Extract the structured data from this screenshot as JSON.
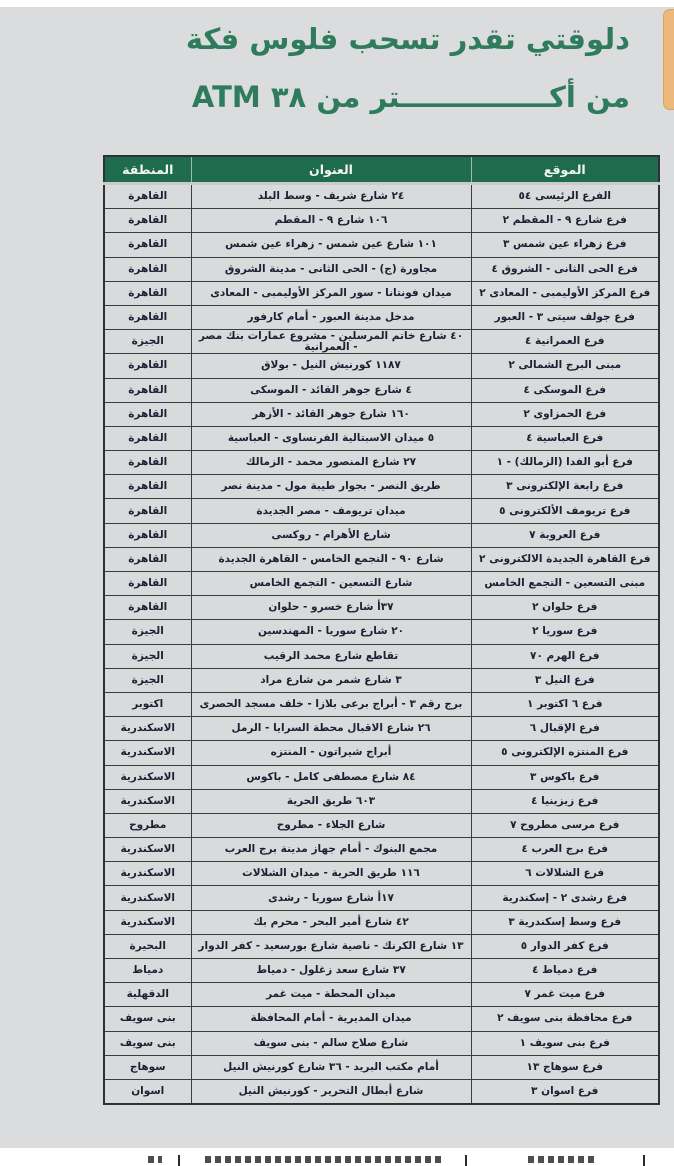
{
  "header": {
    "title_line1": "دلوقتي تقدر تسحب فلوس فكة",
    "title_line2": "من أكـــــــــــــــتر من ٣٨ ATM",
    "atm_count": "٣٨"
  },
  "colors": {
    "title_green": "#2e7c5c",
    "table_header_green": "#1e6b4d",
    "page_bg": "#dadcdd",
    "bookmark_tab_orange": "#edb87c",
    "cell_text": "#1d1f33"
  },
  "table": {
    "headers": {
      "location": "الموقع",
      "address": "العنوان",
      "region": "المنطقة"
    },
    "rows": [
      {
        "location": "الفرع الرئيسى ٥٤",
        "address": "٢٤ شارع شريف - وسط البلد",
        "region": "القاهرة"
      },
      {
        "location": "فرع شارع ٩ - المقطم ٢",
        "address": "١٠٦ شارع ٩ - المقطم",
        "region": "القاهرة"
      },
      {
        "location": "فرع زهراء عين شمس ٣",
        "address": "١٠١ شارع عين شمس - زهراء عين شمس",
        "region": "القاهرة"
      },
      {
        "location": "فرع الحى الثانى - الشروق ٤",
        "address": "مجاورة (ج) - الحى الثانى - مدينة الشروق",
        "region": "القاهرة"
      },
      {
        "location": "فرع المركز الأوليمبى - المعادى ٢",
        "address": "ميدان فونتانا - سور المركز الأوليمبى - المعادى",
        "region": "القاهرة"
      },
      {
        "location": "فرع جولف سيتى ٣ - العبور",
        "address": "مدخل مدينة العبور - أمام كارفور",
        "region": "القاهرة"
      },
      {
        "location": "فرع العمرانية ٤",
        "address": "٤٠ شارع خاتم المرسلين - مشروع عمارات بنك مصر - العمرانية",
        "region": "الجيزة"
      },
      {
        "location": "مبنى البرج الشمالى ٢",
        "address": "١١٨٧ كورنيش النيل - بولاق",
        "region": "القاهرة"
      },
      {
        "location": "فرع الموسكى ٤",
        "address": "٤ شارع جوهر القائد - الموسكى",
        "region": "القاهرة"
      },
      {
        "location": "فرع الحمزاوى ٢",
        "address": "١٦٠ شارع جوهر القائد - الأزهر",
        "region": "القاهرة"
      },
      {
        "location": "فرع العباسية ٤",
        "address": "٥ ميدان الاسبتالية الفرنساوى - العباسية",
        "region": "القاهرة"
      },
      {
        "location": "فرع أبو الفدا (الزمالك) - ١",
        "address": "٢٧ شارع المنصور محمد - الزمالك",
        "region": "القاهرة"
      },
      {
        "location": "فرع رابعة الإلكترونى ٣",
        "address": "طريق النصر - بجوار طيبة مول - مدينة نصر",
        "region": "القاهرة"
      },
      {
        "location": "فرع تريومف الألكترونى ٥",
        "address": "ميدان تريومف - مصر الجديدة",
        "region": "القاهرة"
      },
      {
        "location": "فرع العروبة ٧",
        "address": "شارع الأهرام - روكسى",
        "region": "القاهرة"
      },
      {
        "location": "فرع القاهرة الجديدة الالكترونى ٢",
        "address": "شارع ٩٠ - التجمع الخامس - القاهرة الجديدة",
        "region": "القاهرة"
      },
      {
        "location": "مبنى التسعين - التجمع الخامس",
        "address": "شارع التسعين - التجمع الخامس",
        "region": "القاهرة"
      },
      {
        "location": "فرع حلوان ٢",
        "address": "٣٧أ شارع خسرو - حلوان",
        "region": "القاهرة"
      },
      {
        "location": "فرع سوريا ٢",
        "address": "٢٠ شارع سوريا - المهندسين",
        "region": "الجيزة"
      },
      {
        "location": "فرع الهرم ٧٠",
        "address": "تقاطع شارع محمد الرقيب",
        "region": "الجيزة"
      },
      {
        "location": "فرع النيل ٣",
        "address": "٣ شارع شمر من شارع مراد",
        "region": "الجيزة"
      },
      {
        "location": "فرع ٦ اكتوبر ١",
        "address": "برج رقم ٣ - أبراج برعى بلازا - خلف مسجد الحصرى",
        "region": "اكتوبر"
      },
      {
        "location": "فرع الإقبال ٦",
        "address": "٢٦ شارع الاقبال محطة السرايا - الرمل",
        "region": "الاسكندرية"
      },
      {
        "location": "فرع المنتزه الإلكترونى ٥",
        "address": "أبراج شيراتون - المنتزه",
        "region": "الاسكندرية"
      },
      {
        "location": "فرع باكوس ٣",
        "address": "٨٤ شارع مصطفى كامل - باكوس",
        "region": "الاسكندرية"
      },
      {
        "location": "فرع زيزينيا ٤",
        "address": "٦٠٣ طريق الحرية",
        "region": "الاسكندرية"
      },
      {
        "location": "فرع مرسى مطروح ٧",
        "address": "شارع الجلاء - مطروح",
        "region": "مطروح"
      },
      {
        "location": "فرع برج العرب ٤",
        "address": "مجمع البنوك - أمام جهاز مدينة برج العرب",
        "region": "الاسكندرية"
      },
      {
        "location": "فرع الشلالات ٦",
        "address": "١١٦ طريق الحرية - ميدان الشلالات",
        "region": "الاسكندرية"
      },
      {
        "location": "فرع رشدى ٢ - إسكندرية",
        "address": "١٧أ شارع سوريا - رشدى",
        "region": "الاسكندرية"
      },
      {
        "location": "فرع وسط إسكندرية ٣",
        "address": "٤٢ شارع أمير البحر - محرم بك",
        "region": "الاسكندرية"
      },
      {
        "location": "فرع كفر الدوار ٥",
        "address": "١٣ شارع الكرنك - ناصية شارع بورسعيد - كفر الدوار",
        "region": "البحيرة"
      },
      {
        "location": "فرع دمياط ٤",
        "address": "٣٧ شارع سعد زغلول - دمياط",
        "region": "دمياط"
      },
      {
        "location": "فرع ميت غمر ٧",
        "address": "ميدان المحطة - ميت غمر",
        "region": "الدقهلية"
      },
      {
        "location": "فرع محافظة بنى سويف ٢",
        "address": "ميدان المديرية - أمام المحافظة",
        "region": "بنى سويف"
      },
      {
        "location": "فرع بنى سويف ١",
        "address": "شارع صلاح سالم - بنى سويف",
        "region": "بنى سويف"
      },
      {
        "location": "فرع سوهاج ١٣",
        "address": "أمام مكتب البريد - ٣٦ شارع كورنيش النيل",
        "region": "سوهاج"
      },
      {
        "location": "فرع اسوان ٣",
        "address": "شارع أبطال التحرير - كورنيش النيل",
        "region": "اسوان"
      }
    ]
  },
  "bottom_partial_table": {
    "visible": true
  }
}
